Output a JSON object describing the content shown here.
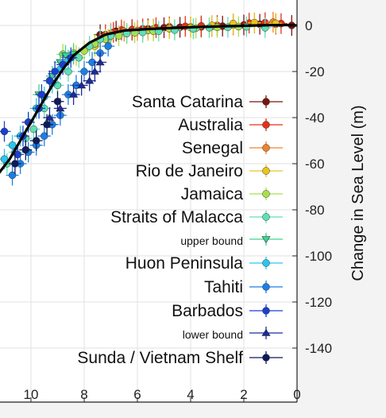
{
  "chart_data": {
    "type": "scatter",
    "title": "",
    "xlabel": "",
    "ylabel": "Change in Sea Level (m)",
    "xlim": [
      11.0,
      0
    ],
    "ylim": [
      -147,
      3
    ],
    "xticks": [
      10,
      8,
      6,
      4,
      2,
      0
    ],
    "yticks": [
      0,
      -20,
      -40,
      -60,
      -80,
      -100,
      -120,
      -140
    ],
    "grid": true,
    "legend_position": "right",
    "series": [
      {
        "name": "Santa Catarina",
        "color": "#7a1410",
        "marker": "circle",
        "points": [
          [
            7.4,
            -4
          ],
          [
            6.8,
            -2.5
          ],
          [
            6.2,
            -2
          ],
          [
            5.6,
            -1.5
          ],
          [
            5.0,
            -1
          ],
          [
            4.4,
            -0.8
          ],
          [
            3.6,
            -0.6
          ],
          [
            2.8,
            -0.3
          ],
          [
            2.0,
            0.2
          ],
          [
            1.4,
            0.5
          ],
          [
            0.8,
            0.6
          ],
          [
            0.2,
            0
          ]
        ]
      },
      {
        "name": "Australia",
        "color": "#e53018",
        "marker": "circle",
        "points": [
          [
            7.2,
            -4
          ],
          [
            6.9,
            -3
          ],
          [
            6.6,
            -2
          ],
          [
            6.2,
            -1.8
          ],
          [
            5.8,
            -1.5
          ],
          [
            5.3,
            -1
          ],
          [
            4.8,
            -0.6
          ],
          [
            4.2,
            -0.4
          ],
          [
            3.6,
            -0.2
          ],
          [
            3.0,
            0
          ],
          [
            2.4,
            0.5
          ],
          [
            1.8,
            1
          ],
          [
            1.2,
            1.2
          ],
          [
            0.6,
            0.8
          ]
        ]
      },
      {
        "name": "Senegal",
        "color": "#f0822a",
        "marker": "circle",
        "points": [
          [
            7.0,
            -3.5
          ],
          [
            6.5,
            -2.5
          ],
          [
            6.0,
            -2.2
          ],
          [
            5.4,
            -1.6
          ],
          [
            4.8,
            -1.0
          ],
          [
            4.0,
            -0.7
          ],
          [
            3.2,
            -0.4
          ],
          [
            2.4,
            0.2
          ],
          [
            1.6,
            1.0
          ],
          [
            0.9,
            1.4
          ]
        ]
      },
      {
        "name": "Rio de Janeiro",
        "color": "#e8c51c",
        "marker": "circle",
        "points": [
          [
            8.3,
            -13
          ],
          [
            7.6,
            -9
          ],
          [
            7.1,
            -6
          ],
          [
            6.4,
            -3.5
          ],
          [
            5.6,
            -2.2
          ],
          [
            4.8,
            -1.4
          ],
          [
            4.0,
            -0.9
          ],
          [
            3.2,
            0
          ],
          [
            2.4,
            0.8
          ],
          [
            1.6,
            1.2
          ],
          [
            0.8,
            0.9
          ]
        ]
      },
      {
        "name": "Jamaica",
        "color": "#a8e04a",
        "marker": "circle",
        "points": [
          [
            8.8,
            -12.5
          ],
          [
            8.4,
            -12
          ],
          [
            8.0,
            -11
          ],
          [
            7.6,
            -8
          ],
          [
            7.2,
            -6
          ],
          [
            6.7,
            -4.5
          ],
          [
            6.1,
            -3.2
          ],
          [
            5.4,
            -2.5
          ],
          [
            4.6,
            -1.8
          ],
          [
            3.8,
            -1.2
          ],
          [
            3.0,
            -0.8
          ],
          [
            2.2,
            -0.5
          ]
        ]
      },
      {
        "name": "Straits of Malacca",
        "color": "#5fe0b4",
        "marker": "circle",
        "points": [
          [
            10.9,
            -60
          ],
          [
            10.6,
            -55
          ],
          [
            10.2,
            -49
          ],
          [
            9.9,
            -45
          ],
          [
            9.5,
            -36
          ],
          [
            9.0,
            -26
          ],
          [
            8.6,
            -20
          ],
          [
            8.2,
            -14
          ],
          [
            7.8,
            -9
          ],
          [
            7.4,
            -6
          ],
          [
            7.0,
            -4.5
          ],
          [
            6.4,
            -3.5
          ],
          [
            5.8,
            -3
          ],
          [
            5.2,
            -2.5
          ],
          [
            4.6,
            -2
          ],
          [
            3.9,
            -1.5
          ],
          [
            3.3,
            -1
          ],
          [
            2.6,
            -0.8
          ],
          [
            1.9,
            -0.6
          ],
          [
            1.2,
            -1.0
          ]
        ]
      },
      {
        "name": "upper bound",
        "color": "#37d78f",
        "marker": "triangle-down",
        "small": true,
        "points": [
          [
            9.7,
            -30
          ],
          [
            9.2,
            -22
          ],
          [
            8.9,
            -16
          ],
          [
            8.7,
            -13
          ],
          [
            8.4,
            -12.5
          ]
        ]
      },
      {
        "name": "Huon Peninsula",
        "color": "#29c6ee",
        "marker": "circle",
        "points": [
          [
            11.0,
            -58
          ],
          [
            10.7,
            -52
          ],
          [
            10.4,
            -48
          ],
          [
            10.1,
            -42
          ],
          [
            9.8,
            -36
          ],
          [
            9.5,
            -31
          ],
          [
            9.2,
            -25
          ],
          [
            8.9,
            -19
          ],
          [
            8.6,
            -15
          ]
        ]
      },
      {
        "name": "Tahiti",
        "color": "#1a7fe8",
        "marker": "circle",
        "points": [
          [
            10.7,
            -65
          ],
          [
            10.4,
            -60
          ],
          [
            10.1,
            -55
          ],
          [
            9.8,
            -52
          ],
          [
            9.5,
            -48
          ],
          [
            9.2,
            -43
          ],
          [
            8.9,
            -39
          ],
          [
            8.6,
            -30
          ],
          [
            8.3,
            -26
          ],
          [
            8.0,
            -20
          ],
          [
            7.7,
            -16
          ],
          [
            7.4,
            -12
          ],
          [
            7.1,
            -9
          ]
        ]
      },
      {
        "name": "Barbados",
        "color": "#1b3fd0",
        "marker": "circle",
        "points": [
          [
            11.0,
            -46
          ],
          [
            10.5,
            -56
          ],
          [
            10.3,
            -48
          ],
          [
            10.1,
            -42
          ],
          [
            9.7,
            -36
          ],
          [
            9.6,
            -30
          ],
          [
            9.3,
            -24
          ],
          [
            9.1,
            -20
          ],
          [
            8.8,
            -17
          ],
          [
            8.5,
            -14
          ]
        ]
      },
      {
        "name": "lower bound",
        "color": "#1a2aa0",
        "marker": "triangle-up",
        "small": true,
        "points": [
          [
            9.3,
            -40
          ],
          [
            8.9,
            -36
          ],
          [
            8.4,
            -30
          ],
          [
            8.1,
            -26
          ],
          [
            7.8,
            -24
          ],
          [
            7.6,
            -20
          ],
          [
            7.4,
            -16
          ]
        ]
      },
      {
        "name": "Sunda / Vietnam Shelf",
        "color": "#0e1a5a",
        "marker": "circle",
        "points": [
          [
            10.6,
            -60
          ],
          [
            10.2,
            -54
          ],
          [
            9.8,
            -50
          ],
          [
            9.4,
            -43
          ],
          [
            9.0,
            -33
          ]
        ]
      }
    ],
    "fit_line": {
      "color": "#000000",
      "points": [
        [
          11.2,
          -64
        ],
        [
          10.8,
          -58
        ],
        [
          10.4,
          -50
        ],
        [
          10.0,
          -42
        ],
        [
          9.6,
          -34
        ],
        [
          9.2,
          -26
        ],
        [
          8.8,
          -19
        ],
        [
          8.4,
          -13
        ],
        [
          7.8,
          -7.5
        ],
        [
          7.2,
          -4
        ],
        [
          6.5,
          -2.2
        ],
        [
          5.5,
          -1.5
        ],
        [
          4.5,
          -1
        ],
        [
          3.5,
          -0.6
        ],
        [
          2.5,
          -0.3
        ],
        [
          1.5,
          0
        ],
        [
          0.5,
          0.2
        ],
        [
          0,
          0
        ]
      ]
    }
  }
}
